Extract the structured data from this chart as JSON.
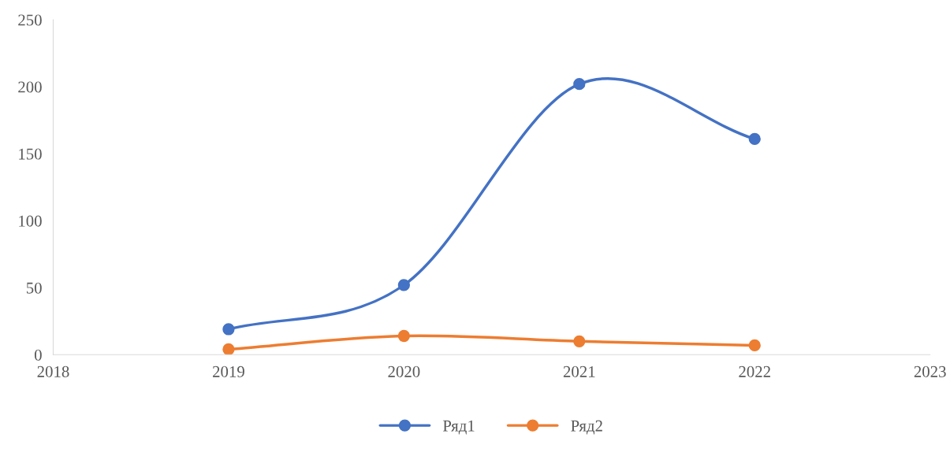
{
  "chart_data": {
    "type": "line",
    "x": [
      2019,
      2020,
      2021,
      2022
    ],
    "series": [
      {
        "name": "Ряд1",
        "color": "#4472c4",
        "values": [
          19,
          52,
          202,
          161
        ]
      },
      {
        "name": "Ряд2",
        "color": "#ed7d31",
        "values": [
          4,
          14,
          10,
          7
        ]
      }
    ],
    "xlim": [
      2018,
      2023
    ],
    "xticks": [
      2018,
      2019,
      2020,
      2021,
      2022,
      2023
    ],
    "ylim": [
      0,
      250
    ],
    "yticks": [
      0,
      50,
      100,
      150,
      200,
      250
    ],
    "grid": false,
    "legend": "bottom",
    "marker": "circle",
    "line_style": "solid"
  }
}
